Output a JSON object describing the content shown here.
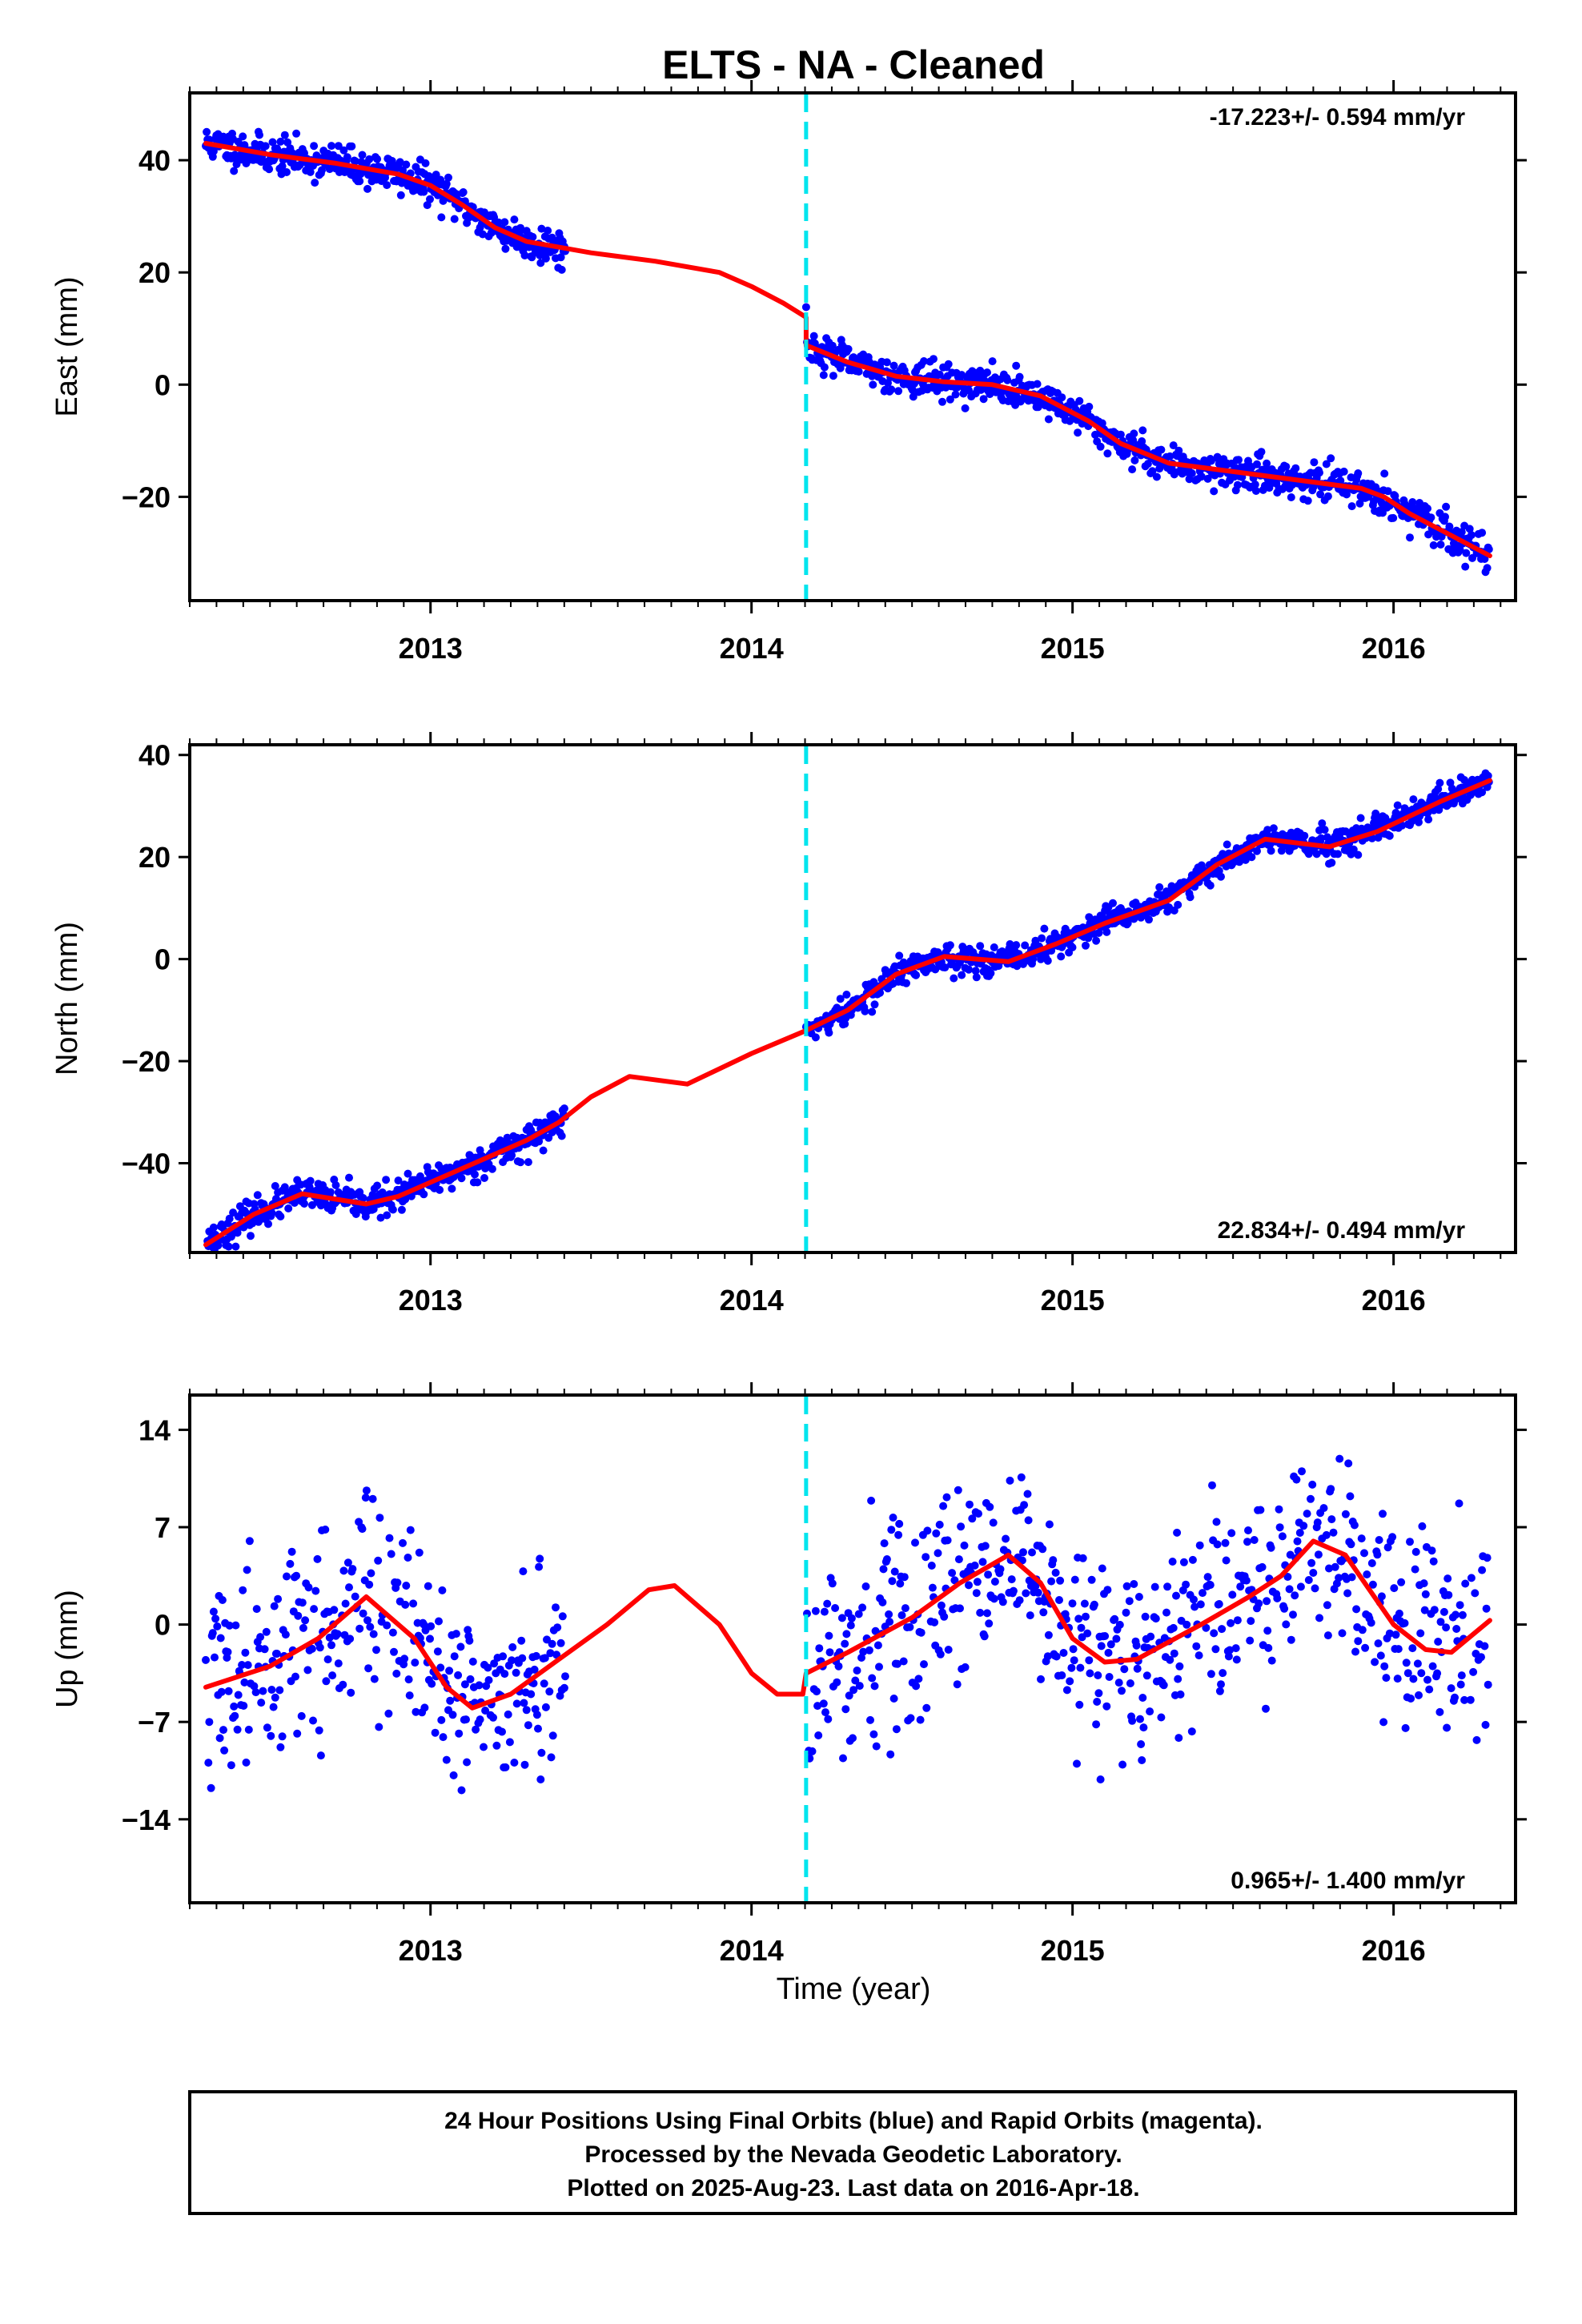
{
  "title": "ELTS  - NA - Cleaned",
  "colors": {
    "final_orbits": "#0000ff",
    "model_fit": "#ff0000",
    "break_line": "#00e5ee"
  },
  "chart_data": [
    {
      "type": "scatter",
      "panel": "east",
      "ylabel": "East (mm)",
      "ylim": [
        -38.5,
        52
      ],
      "yticks": [
        40,
        20,
        0,
        -20
      ],
      "xlim": [
        2012.25,
        2016.38
      ],
      "xticks": [
        2013,
        2014,
        2015,
        2016
      ],
      "rate_label": "-17.223+/- 0.594 mm/yr",
      "rate_position": "top-right",
      "break_epoch": 2014.17,
      "fit_points": [
        [
          2012.3,
          43.0
        ],
        [
          2012.5,
          41.0
        ],
        [
          2012.7,
          39.5
        ],
        [
          2012.9,
          37.5
        ],
        [
          2013.0,
          35.5
        ],
        [
          2013.1,
          32.0
        ],
        [
          2013.2,
          28.0
        ],
        [
          2013.3,
          25.5
        ],
        [
          2013.5,
          23.5
        ],
        [
          2013.7,
          22.0
        ],
        [
          2013.9,
          20.0
        ],
        [
          2014.0,
          17.5
        ],
        [
          2014.1,
          14.5
        ],
        [
          2014.17,
          12.0
        ],
        [
          2014.17,
          7.0
        ],
        [
          2014.3,
          4.0
        ],
        [
          2014.45,
          1.5
        ],
        [
          2014.6,
          0.5
        ],
        [
          2014.75,
          0.0
        ],
        [
          2014.9,
          -2.0
        ],
        [
          2015.05,
          -6.5
        ],
        [
          2015.15,
          -10.5
        ],
        [
          2015.3,
          -14.0
        ],
        [
          2015.5,
          -15.5
        ],
        [
          2015.7,
          -17.0
        ],
        [
          2015.9,
          -18.5
        ],
        [
          2015.97,
          -20.0
        ],
        [
          2016.05,
          -23.0
        ],
        [
          2016.15,
          -26.0
        ],
        [
          2016.3,
          -30.5
        ]
      ],
      "data_segments": [
        {
          "start": 2012.3,
          "end": 2013.42,
          "spread": 1.6
        },
        {
          "start": 2014.17,
          "end": 2016.3,
          "spread": 1.5
        }
      ]
    },
    {
      "type": "scatter",
      "panel": "north",
      "ylabel": "North (mm)",
      "ylim": [
        -57.5,
        42
      ],
      "yticks": [
        40,
        20,
        0,
        -20,
        -40
      ],
      "xlim": [
        2012.25,
        2016.38
      ],
      "xticks": [
        2013,
        2014,
        2015,
        2016
      ],
      "rate_label": "22.834+/- 0.494 mm/yr",
      "rate_position": "bottom-right",
      "break_epoch": 2014.17,
      "fit_points": [
        [
          2012.3,
          -56.0
        ],
        [
          2012.45,
          -50.0
        ],
        [
          2012.6,
          -46.0
        ],
        [
          2012.8,
          -48.0
        ],
        [
          2012.9,
          -46.5
        ],
        [
          2013.1,
          -41.0
        ],
        [
          2013.3,
          -35.5
        ],
        [
          2013.4,
          -32.0
        ],
        [
          2013.5,
          -27.0
        ],
        [
          2013.62,
          -23.0
        ],
        [
          2013.8,
          -24.5
        ],
        [
          2014.0,
          -18.5
        ],
        [
          2014.17,
          -14.0
        ],
        [
          2014.3,
          -10.0
        ],
        [
          2014.45,
          -3.0
        ],
        [
          2014.6,
          0.5
        ],
        [
          2014.8,
          -0.5
        ],
        [
          2014.95,
          3.0
        ],
        [
          2015.1,
          7.0
        ],
        [
          2015.3,
          11.5
        ],
        [
          2015.45,
          18.5
        ],
        [
          2015.6,
          23.5
        ],
        [
          2015.8,
          22.0
        ],
        [
          2015.95,
          25.0
        ],
        [
          2016.15,
          31.0
        ],
        [
          2016.3,
          35.0
        ]
      ],
      "data_segments": [
        {
          "start": 2012.3,
          "end": 2013.42,
          "spread": 1.5
        },
        {
          "start": 2014.17,
          "end": 2016.3,
          "spread": 1.4
        }
      ]
    },
    {
      "type": "scatter",
      "panel": "up",
      "ylabel": "Up (mm)",
      "xlabel": "Time (year)",
      "ylim": [
        -20,
        16.5
      ],
      "yticks": [
        14,
        7,
        0,
        -7,
        -14
      ],
      "xlim": [
        2012.25,
        2016.38
      ],
      "xticks": [
        2013,
        2014,
        2015,
        2016
      ],
      "rate_label": "0.965+/- 1.400 mm/yr",
      "rate_position": "bottom-right",
      "break_epoch": 2014.17,
      "fit_points": [
        [
          2012.3,
          -4.5
        ],
        [
          2012.5,
          -3.0
        ],
        [
          2012.65,
          -1.0
        ],
        [
          2012.8,
          2.0
        ],
        [
          2012.95,
          -1.0
        ],
        [
          2013.05,
          -4.5
        ],
        [
          2013.13,
          -6.0
        ],
        [
          2013.25,
          -5.0
        ],
        [
          2013.4,
          -2.5
        ],
        [
          2013.55,
          0.0
        ],
        [
          2013.68,
          2.5
        ],
        [
          2013.76,
          2.8
        ],
        [
          2013.9,
          0.0
        ],
        [
          2014.0,
          -3.5
        ],
        [
          2014.08,
          -5.0
        ],
        [
          2014.16,
          -5.0
        ],
        [
          2014.17,
          -3.5
        ],
        [
          2014.3,
          -2.0
        ],
        [
          2014.5,
          0.5
        ],
        [
          2014.65,
          3.0
        ],
        [
          2014.8,
          5.0
        ],
        [
          2014.9,
          3.0
        ],
        [
          2015.0,
          -1.0
        ],
        [
          2015.1,
          -2.7
        ],
        [
          2015.2,
          -2.5
        ],
        [
          2015.4,
          0.0
        ],
        [
          2015.55,
          2.0
        ],
        [
          2015.65,
          3.5
        ],
        [
          2015.75,
          6.0
        ],
        [
          2015.85,
          5.0
        ],
        [
          2016.0,
          0.0
        ],
        [
          2016.1,
          -1.8
        ],
        [
          2016.18,
          -2.0
        ],
        [
          2016.3,
          0.3
        ]
      ],
      "data_segments": [
        {
          "start": 2012.3,
          "end": 2013.42,
          "spread": 3.6
        },
        {
          "start": 2014.17,
          "end": 2016.3,
          "spread": 3.6
        }
      ]
    }
  ],
  "footer": {
    "line1": "24 Hour Positions Using Final Orbits (blue) and Rapid Orbits (magenta).",
    "line2": "Processed by the Nevada Geodetic Laboratory.",
    "line3": "Plotted on 2025-Aug-23. Last data on 2016-Apr-18."
  }
}
